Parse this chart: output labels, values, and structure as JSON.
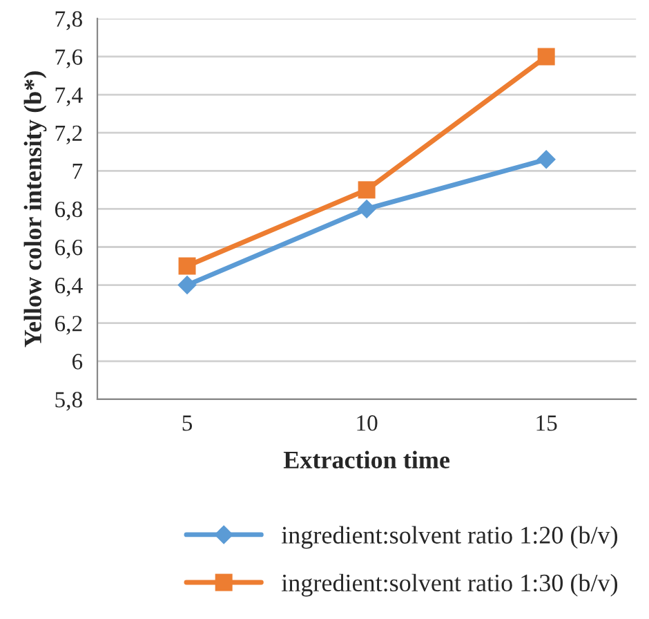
{
  "chart_data": {
    "type": "line",
    "xlabel": "Extraction time",
    "ylabel": "Yellow color intensity (b*)",
    "categories": [
      "5",
      "10",
      "15"
    ],
    "series": [
      {
        "name": "ingredient:solvent ratio 1:20 (b/v)",
        "color": "#5b9bd5",
        "values": [
          6.4,
          6.8,
          7.06
        ],
        "marker": "diamond"
      },
      {
        "name": "ingredient:solvent ratio 1:30 (b/v)",
        "color": "#ed7d31",
        "values": [
          6.5,
          6.9,
          7.6
        ],
        "marker": "square"
      }
    ],
    "ylim": [
      5.8,
      7.8
    ],
    "yticks": [
      {
        "value": 5.8,
        "label": "5,8"
      },
      {
        "value": 6.0,
        "label": "6"
      },
      {
        "value": 6.2,
        "label": "6,2"
      },
      {
        "value": 6.4,
        "label": "6,4"
      },
      {
        "value": 6.6,
        "label": "6,6"
      },
      {
        "value": 6.8,
        "label": "6,8"
      },
      {
        "value": 7.0,
        "label": "7"
      },
      {
        "value": 7.2,
        "label": "7,2"
      },
      {
        "value": 7.4,
        "label": "7,4"
      },
      {
        "value": 7.6,
        "label": "7,6"
      },
      {
        "value": 7.8,
        "label": "7,8"
      }
    ],
    "grid": "y",
    "legend": "bottom",
    "line_style": "solid"
  }
}
